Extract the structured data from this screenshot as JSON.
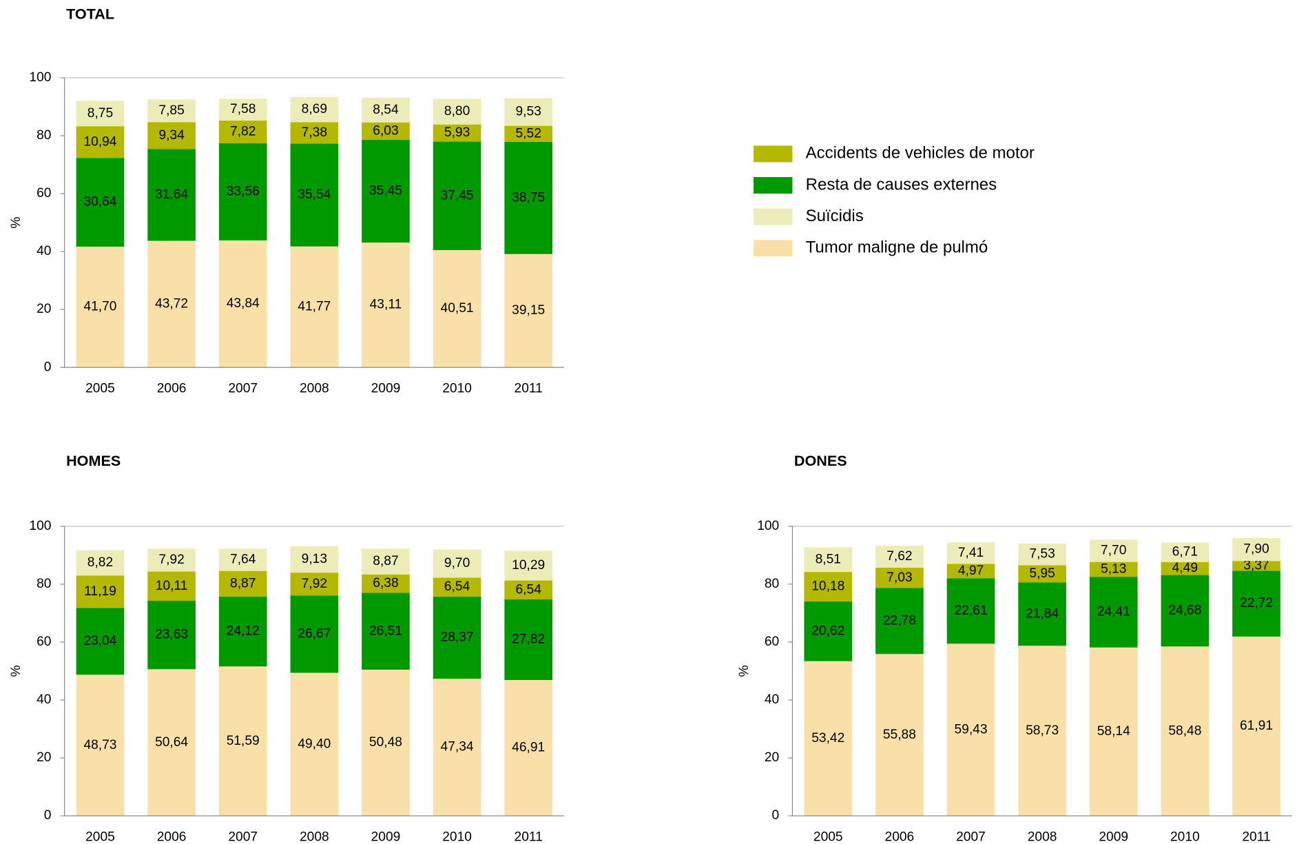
{
  "chart_data": [
    {
      "type": "stacked_bar",
      "title": "TOTAL",
      "y_label": "%",
      "categories": [
        "2005",
        "2006",
        "2007",
        "2008",
        "2009",
        "2010",
        "2011"
      ],
      "ylim": [
        0,
        100
      ],
      "yticks": [
        0,
        20,
        40,
        60,
        80,
        100
      ],
      "grid": false,
      "series": [
        {
          "name": "Accidents de vehicles de motor",
          "color": "#b5b800",
          "values": [
            10.94,
            9.34,
            7.82,
            7.38,
            6.03,
            5.93,
            5.52
          ],
          "value_labels": [
            "10,94",
            "9,34",
            "7,82",
            "7,38",
            "6,03",
            "5,93",
            "5,52"
          ]
        },
        {
          "name": "Resta de causes externes",
          "color": "#009a00",
          "values": [
            30.64,
            31.64,
            33.56,
            35.54,
            35.45,
            37.45,
            38.75
          ],
          "value_labels": [
            "30,64",
            "31,64",
            "33,56",
            "35,54",
            "35,45",
            "37,45",
            "38,75"
          ]
        },
        {
          "name": "Suïcidis",
          "color": "#ececb9",
          "values": [
            8.75,
            7.85,
            7.58,
            8.69,
            8.54,
            8.8,
            9.53
          ],
          "value_labels": [
            "8,75",
            "7,85",
            "7,58",
            "8,69",
            "8,54",
            "8,80",
            "9,53"
          ]
        },
        {
          "name": "Tumor maligne de pulmó",
          "color": "#f9e0a8",
          "values": [
            41.7,
            43.72,
            43.84,
            41.77,
            43.11,
            40.51,
            39.15
          ],
          "value_labels": [
            "41,70",
            "43,72",
            "43,84",
            "41,77",
            "43,11",
            "40,51",
            "39,15"
          ]
        }
      ]
    },
    {
      "type": "stacked_bar",
      "title": "HOMES",
      "y_label": "%",
      "categories": [
        "2005",
        "2006",
        "2007",
        "2008",
        "2009",
        "2010",
        "2011"
      ],
      "ylim": [
        0,
        100
      ],
      "yticks": [
        0,
        20,
        40,
        60,
        80,
        100
      ],
      "grid": false,
      "series": [
        {
          "color": "#b5b800",
          "values": [
            11.19,
            10.11,
            8.87,
            7.92,
            6.38,
            6.54,
            6.54
          ],
          "value_labels": [
            "11,19",
            "10,11",
            "8,87",
            "7,92",
            "6,38",
            "6,54",
            "6,54"
          ]
        },
        {
          "color": "#009a00",
          "values": [
            23.04,
            23.63,
            24.12,
            26.67,
            26.51,
            28.37,
            27.82
          ],
          "value_labels": [
            "23,04",
            "23,63",
            "24,12",
            "26,67",
            "26,51",
            "28,37",
            "27,82"
          ]
        },
        {
          "color": "#ececb9",
          "values": [
            8.82,
            7.92,
            7.64,
            9.13,
            8.87,
            9.7,
            10.29
          ],
          "value_labels": [
            "8,82",
            "7,92",
            "7,64",
            "9,13",
            "8,87",
            "9,70",
            "10,29"
          ]
        },
        {
          "color": "#f9e0a8",
          "values": [
            48.73,
            50.64,
            51.59,
            49.4,
            50.48,
            47.34,
            46.91
          ],
          "value_labels": [
            "48,73",
            "50,64",
            "51,59",
            "49,40",
            "50,48",
            "47,34",
            "46,91"
          ]
        }
      ]
    },
    {
      "type": "stacked_bar",
      "title": "DONES",
      "y_label": "%",
      "categories": [
        "2005",
        "2006",
        "2007",
        "2008",
        "2009",
        "2010",
        "2011"
      ],
      "ylim": [
        0,
        100
      ],
      "yticks": [
        0,
        20,
        40,
        60,
        80,
        100
      ],
      "grid": false,
      "series": [
        {
          "color": "#b5b800",
          "values": [
            10.18,
            7.03,
            4.97,
            5.95,
            5.13,
            4.49,
            3.37
          ],
          "value_labels": [
            "10,18",
            "7,03",
            "4,97",
            "5,95",
            "5,13",
            "4,49",
            "3,37"
          ]
        },
        {
          "color": "#009a00",
          "values": [
            20.62,
            22.78,
            22.61,
            21.84,
            24.41,
            24.68,
            22.72
          ],
          "value_labels": [
            "20,62",
            "22,78",
            "22,61",
            "21,84",
            "24,41",
            "24,68",
            "22,72"
          ]
        },
        {
          "color": "#ececb9",
          "values": [
            8.51,
            7.62,
            7.41,
            7.53,
            7.7,
            6.71,
            7.9
          ],
          "value_labels": [
            "8,51",
            "7,62",
            "7,41",
            "7,53",
            "7,70",
            "6,71",
            "7,90"
          ]
        },
        {
          "color": "#f9e0a8",
          "values": [
            53.42,
            55.88,
            59.43,
            58.73,
            58.14,
            58.48,
            61.91
          ],
          "value_labels": [
            "53,42",
            "55,88",
            "59,43",
            "58,73",
            "58,14",
            "58,48",
            "61,91"
          ]
        }
      ]
    }
  ]
}
